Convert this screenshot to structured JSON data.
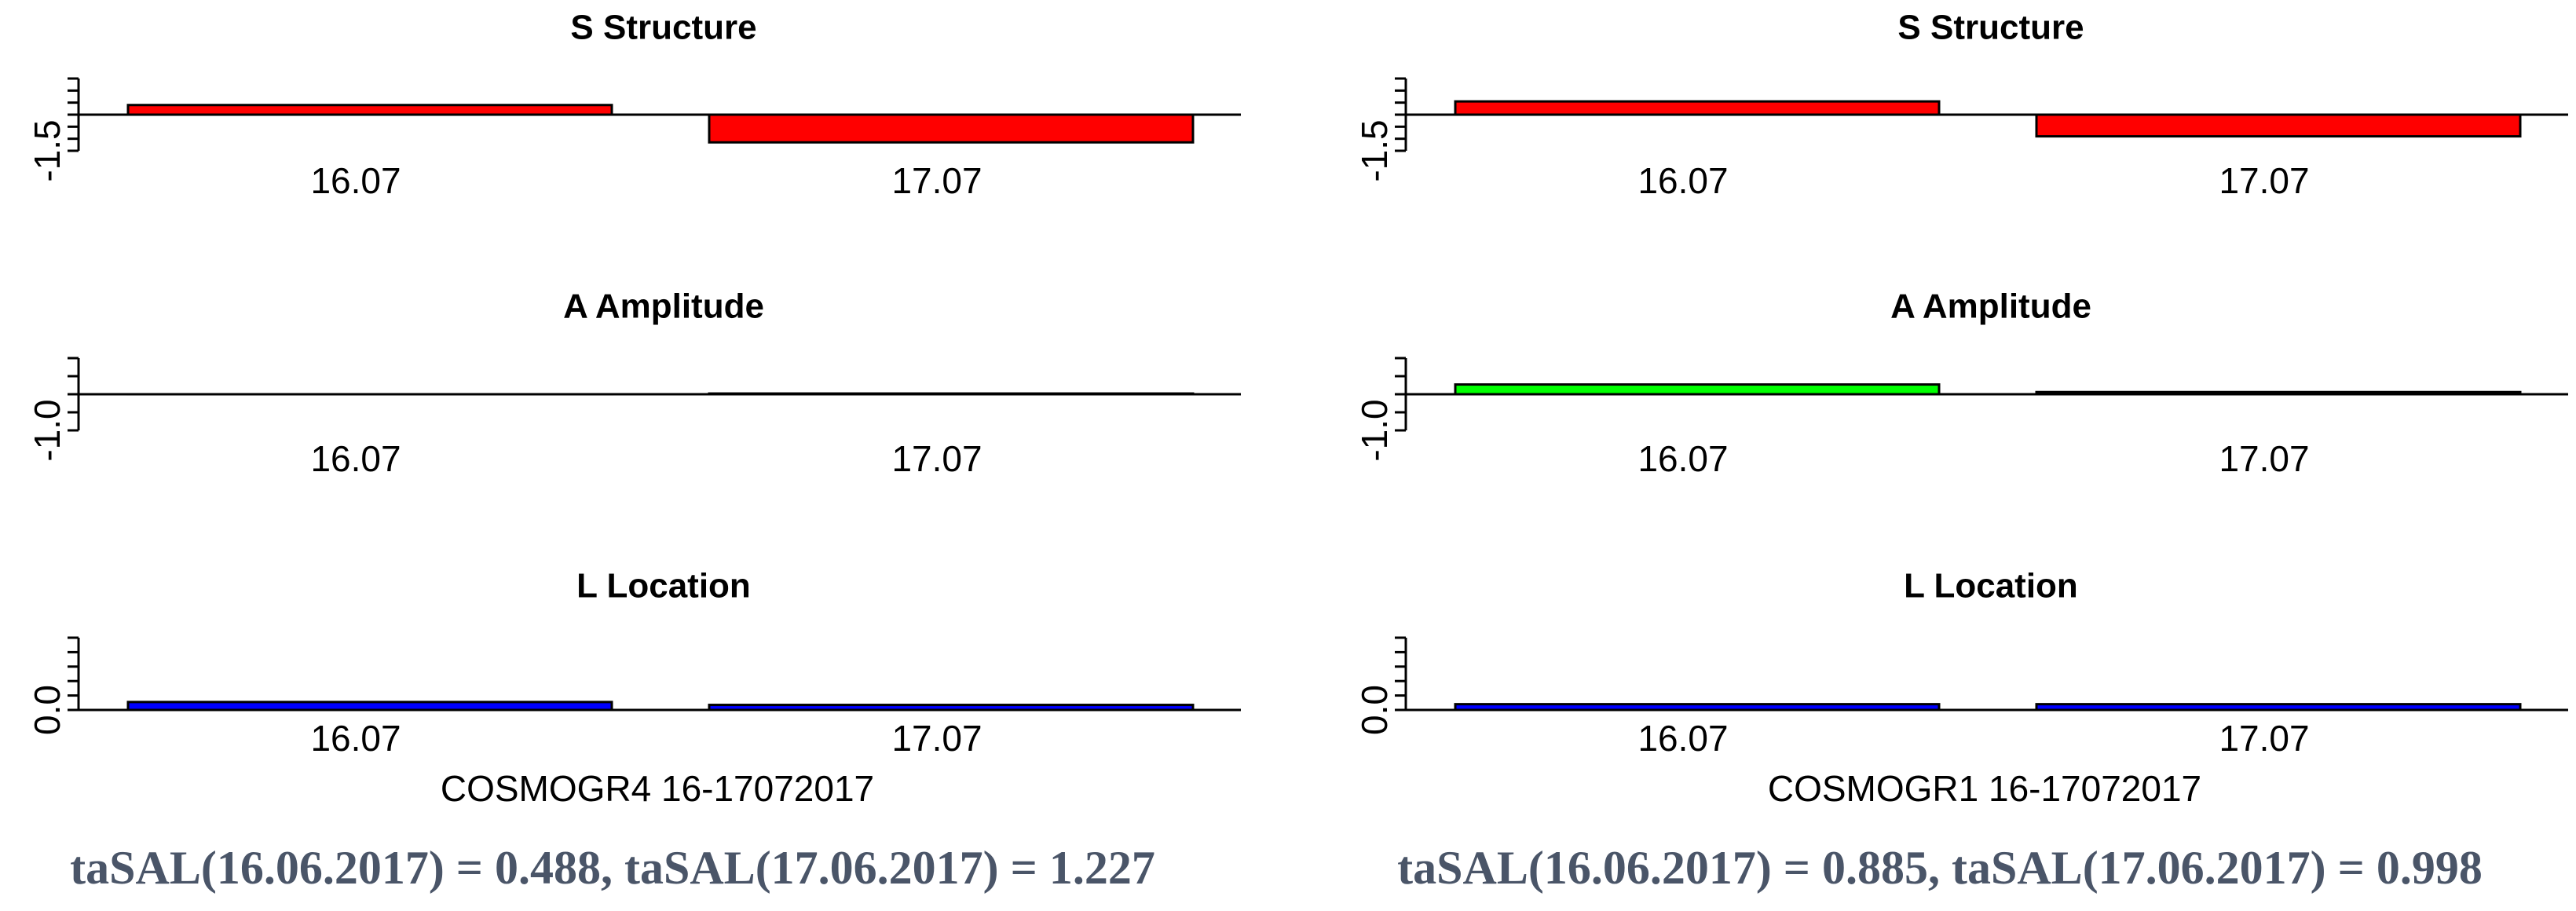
{
  "chart_data": [
    {
      "type": "bar",
      "title": "S Structure",
      "categories": [
        "16.07",
        "17.07"
      ],
      "values": [
        0.4,
        -1.15
      ],
      "color": "#ff0000",
      "ylim": [
        -1.5,
        1.5
      ],
      "yticks": [
        -1.5,
        {
          "value": -1,
          "label": null
        },
        {
          "value": -0.5,
          "label": null
        },
        {
          "value": 0,
          "label": null
        },
        {
          "value": 0.5,
          "label": null
        },
        {
          "value": 1,
          "label": null
        },
        {
          "value": 1.5,
          "label": null
        }
      ]
    },
    {
      "type": "bar",
      "title": "A Amplitude",
      "categories": [
        "16.07",
        "17.07"
      ],
      "values": [
        0,
        0.02
      ],
      "color": "#00ff00",
      "ylim": [
        -1,
        1
      ],
      "yticks": [
        {
          "value": -1,
          "label": "-1.0"
        },
        {
          "value": -0.5,
          "label": null
        },
        {
          "value": 0,
          "label": null
        },
        {
          "value": 0.5,
          "label": null
        },
        {
          "value": 1,
          "label": null
        }
      ]
    },
    {
      "type": "bar",
      "title": "L Location",
      "categories": [
        "16.07",
        "17.07"
      ],
      "values": [
        0.11,
        0.07
      ],
      "color": "#0000ff",
      "ylim": [
        0,
        1
      ],
      "yticks": [
        {
          "value": 0,
          "label": "0.0"
        },
        {
          "value": 0.2,
          "label": null
        },
        {
          "value": 0.4,
          "label": null
        },
        {
          "value": 0.6,
          "label": null
        },
        {
          "value": 0.8,
          "label": null
        },
        {
          "value": 1,
          "label": null
        }
      ],
      "xlabel": "COSMOGR4 16-17072017"
    },
    {
      "type": "bar",
      "title": "S Structure",
      "categories": [
        "16.07",
        "17.07"
      ],
      "values": [
        0.55,
        -0.9
      ],
      "color": "#ff0000",
      "ylim": [
        -1.5,
        1.5
      ],
      "yticks": [
        -1.5,
        {
          "value": -1,
          "label": null
        },
        {
          "value": -0.5,
          "label": null
        },
        {
          "value": 0,
          "label": null
        },
        {
          "value": 0.5,
          "label": null
        },
        {
          "value": 1,
          "label": null
        },
        {
          "value": 1.5,
          "label": null
        }
      ]
    },
    {
      "type": "bar",
      "title": "A Amplitude",
      "categories": [
        "16.07",
        "17.07"
      ],
      "values": [
        0.27,
        0.06
      ],
      "color": "#00ff00",
      "ylim": [
        -1,
        1
      ],
      "yticks": [
        {
          "value": -1,
          "label": "-1.0"
        },
        {
          "value": -0.5,
          "label": null
        },
        {
          "value": 0,
          "label": null
        },
        {
          "value": 0.5,
          "label": null
        },
        {
          "value": 1,
          "label": null
        }
      ]
    },
    {
      "type": "bar",
      "title": "L Location",
      "categories": [
        "16.07",
        "17.07"
      ],
      "values": [
        0.08,
        0.08
      ],
      "color": "#0000ff",
      "ylim": [
        0,
        1
      ],
      "yticks": [
        {
          "value": 0,
          "label": "0.0"
        },
        {
          "value": 0.2,
          "label": null
        },
        {
          "value": 0.4,
          "label": null
        },
        {
          "value": 0.6,
          "label": null
        },
        {
          "value": 0.8,
          "label": null
        },
        {
          "value": 1,
          "label": null
        }
      ],
      "xlabel": "COSMOGR1 16-17072017"
    }
  ],
  "captions": [
    "taSAL(16.06.2017) = 0.488, taSAL(17.06.2017) = 1.227",
    "taSAL(16.06.2017) = 0.885, taSAL(17.06.2017) = 0.998"
  ]
}
